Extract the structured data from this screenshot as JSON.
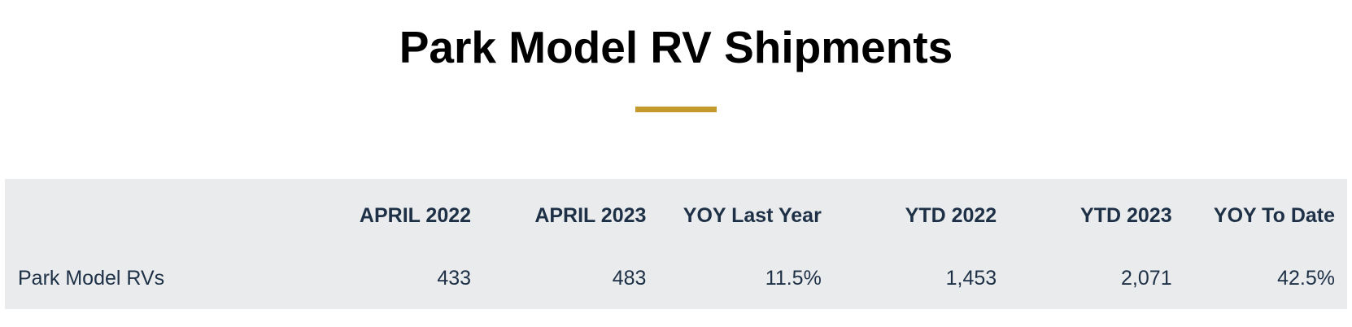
{
  "header": {
    "title": "Park Model RV Shipments",
    "accent_color": "#c49a2c"
  },
  "table": {
    "background_color": "#e9ebed",
    "text_color": "#1d3046",
    "columns": [
      "",
      "APRIL 2022",
      "APRIL 2023",
      "YOY Last Year",
      "YTD 2022",
      "YTD 2023",
      "YOY To Date"
    ],
    "rows": [
      {
        "label": "Park Model RVs",
        "values": [
          "433",
          "483",
          "11.5%",
          "1,453",
          "2,071",
          "42.5%"
        ]
      }
    ]
  }
}
